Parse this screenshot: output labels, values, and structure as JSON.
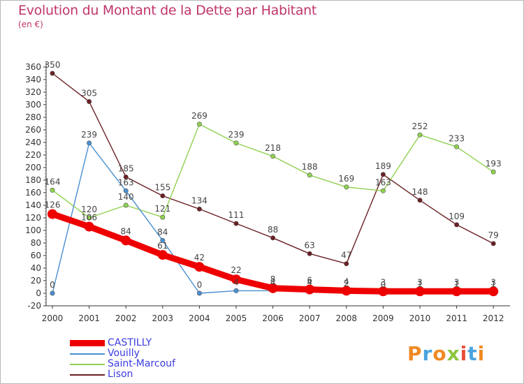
{
  "header": {
    "title": "Evolution du Montant de la Dette par Habitant",
    "unit": "(en €)"
  },
  "logo": {
    "text": "Proxiti",
    "letters": [
      "P",
      "r",
      "o",
      "x",
      "i",
      "t",
      "i"
    ],
    "colors": [
      "#f08a24",
      "#4aa3df",
      "#f08a24",
      "#8cc63f",
      "#e94e3a",
      "#4aa3df",
      "#f08a24"
    ]
  },
  "chart_data": {
    "type": "line",
    "title": "Evolution du Montant de la Dette par Habitant",
    "ylabel": "(en €)",
    "xlabel": "",
    "ylim": [
      -20,
      360
    ],
    "yticks": [
      -20,
      0,
      20,
      40,
      60,
      80,
      100,
      120,
      140,
      160,
      180,
      200,
      220,
      240,
      260,
      280,
      300,
      320,
      340,
      360
    ],
    "categories": [
      "2000",
      "2001",
      "2002",
      "2003",
      "2004",
      "2005",
      "2006",
      "2007",
      "2008",
      "2009",
      "2010",
      "2011",
      "2012"
    ],
    "grid": false,
    "legend_position": "bottom-left",
    "series": [
      {
        "name": "CASTILLY",
        "color": "#ee0000",
        "values": [
          126,
          106,
          84,
          61,
          42,
          22,
          8,
          6,
          4,
          3,
          3,
          3,
          3
        ]
      },
      {
        "name": "Vouilly",
        "color": "#4a8fd0",
        "values": [
          0,
          239,
          163,
          84,
          0,
          4,
          4,
          4,
          2,
          0,
          1,
          1,
          1
        ]
      },
      {
        "name": "Saint-Marcouf",
        "color": "#8fd14f",
        "values": [
          164,
          120,
          140,
          121,
          269,
          239,
          218,
          188,
          169,
          163,
          252,
          233,
          193
        ]
      },
      {
        "name": "Lison",
        "color": "#6b1f24",
        "values": [
          350,
          305,
          185,
          155,
          134,
          111,
          88,
          63,
          47,
          189,
          148,
          109,
          79
        ]
      }
    ]
  }
}
